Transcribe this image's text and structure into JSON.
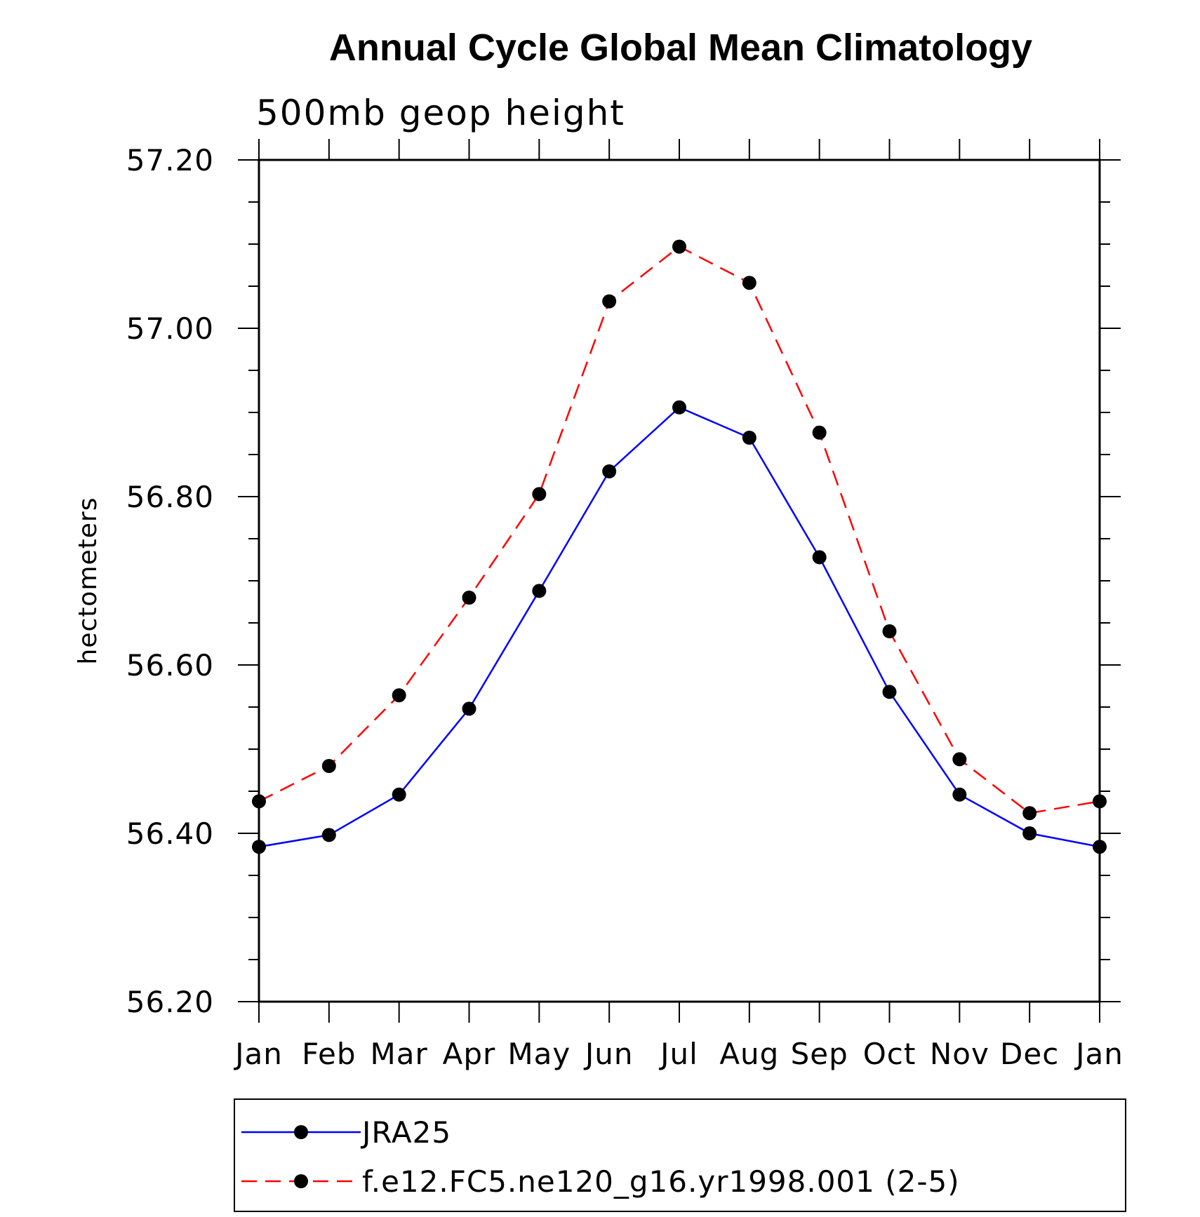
{
  "chart_data": {
    "type": "line",
    "title": "Annual Cycle Global Mean Climatology",
    "subtitle": "500mb geop height",
    "xlabel": "",
    "ylabel": "hectometers",
    "categories": [
      "Jan",
      "Feb",
      "Mar",
      "Apr",
      "May",
      "Jun",
      "Jul",
      "Aug",
      "Sep",
      "Oct",
      "Nov",
      "Dec",
      "Jan"
    ],
    "ylim": [
      56.2,
      57.2
    ],
    "y_major_ticks": [
      "56.20",
      "56.40",
      "56.60",
      "56.80",
      "57.00",
      "57.20"
    ],
    "y_minor_step": 0.05,
    "grid": false,
    "legend_position": "bottom",
    "series": [
      {
        "name": "JRA25",
        "color": "#0000ff",
        "line_style": "solid",
        "marker": "filled-circle",
        "values": [
          56.384,
          56.398,
          56.446,
          56.548,
          56.688,
          56.83,
          56.906,
          56.87,
          56.728,
          56.568,
          56.446,
          56.4,
          56.384
        ]
      },
      {
        "name": "f.e12.FC5.ne120_g16.yr1998.001 (2-5)",
        "color": "#ff0000",
        "line_style": "dashed",
        "marker": "filled-circle",
        "values": [
          56.438,
          56.48,
          56.564,
          56.68,
          56.803,
          57.032,
          57.097,
          57.054,
          56.876,
          56.64,
          56.488,
          56.424,
          56.438
        ]
      }
    ]
  }
}
